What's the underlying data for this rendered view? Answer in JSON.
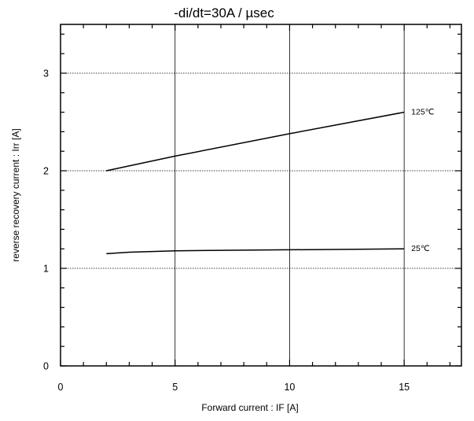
{
  "chart_data": {
    "type": "line",
    "title": "-di/dt=30A / µsec",
    "xlabel": "Forward current :  IF [A]",
    "ylabel": "reverse recovery current : Irr [A]",
    "xlim": [
      0,
      17.5
    ],
    "ylim": [
      0,
      3.5
    ],
    "xticks": [
      0,
      5,
      10,
      15
    ],
    "yticks": [
      0,
      1,
      2,
      3
    ],
    "xtick_labels": [
      "0",
      "5",
      "10",
      "15"
    ],
    "ytick_labels": [
      "0",
      "1",
      "2",
      "3"
    ],
    "grid": true,
    "series": [
      {
        "name": "125℃",
        "x": [
          2,
          5,
          10,
          15
        ],
        "y": [
          2.0,
          2.15,
          2.38,
          2.6
        ]
      },
      {
        "name": "25℃",
        "x": [
          2,
          3,
          5,
          7,
          10,
          13,
          15
        ],
        "y": [
          1.15,
          1.165,
          1.18,
          1.185,
          1.19,
          1.195,
          1.2
        ]
      }
    ]
  }
}
